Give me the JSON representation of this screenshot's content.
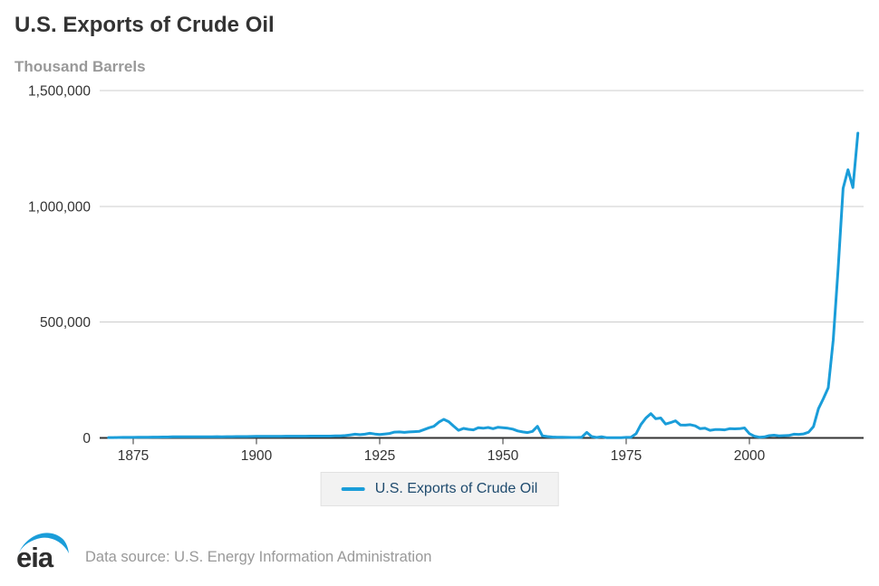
{
  "header": {
    "title": "U.S. Exports of Crude Oil",
    "units_label": "Thousand Barrels"
  },
  "legend": {
    "label": "U.S. Exports of Crude Oil"
  },
  "footer": {
    "logo_text": "eia",
    "source": "Data source: U.S. Energy Information Administration"
  },
  "colors": {
    "line": "#1a9dd9",
    "title_text": "#333333",
    "subtitle_text": "#999999",
    "axis_text": "#333333",
    "gridline": "#cccccc",
    "axis_line": "#333333",
    "legend_bg": "#f2f2f2",
    "legend_text": "#1f4b6e",
    "logo_swoosh": "#1a9dd9",
    "logo_text": "#2e2e2e",
    "source_text": "#999999"
  },
  "chart_data": {
    "type": "line",
    "title": "U.S. Exports of Crude Oil",
    "ylabel": "Thousand Barrels",
    "xlabel": "",
    "series_name": "U.S. Exports of Crude Oil",
    "grid": "horizontal",
    "legend_position": "bottom-center",
    "ylim": [
      0,
      1500000
    ],
    "y_ticks": [
      0,
      500000,
      1000000,
      1500000
    ],
    "y_tick_labels": [
      "0",
      "500,000",
      "1,000,000",
      "1,500,000"
    ],
    "x_ticks": [
      1875,
      1900,
      1925,
      1950,
      1975,
      2000
    ],
    "x_tick_labels": [
      "1875",
      "1900",
      "1925",
      "1950",
      "1975",
      "2000"
    ],
    "x_start_year": 1870,
    "x_end_year": 2022,
    "values": [
      1500,
      1700,
      2000,
      2200,
      2400,
      2500,
      2700,
      3000,
      3200,
      3400,
      3500,
      3800,
      4000,
      4500,
      4600,
      4700,
      4800,
      4900,
      5000,
      5000,
      5100,
      5200,
      5300,
      5200,
      5400,
      5500,
      5700,
      5900,
      6000,
      6200,
      6500,
      6700,
      6800,
      7000,
      7100,
      7200,
      7300,
      7400,
      7400,
      7500,
      7600,
      7700,
      7800,
      7900,
      8000,
      8000,
      8500,
      9000,
      10000,
      13000,
      16000,
      14000,
      16000,
      20000,
      17000,
      15000,
      17000,
      19000,
      25000,
      26000,
      24000,
      26000,
      27000,
      28000,
      36000,
      44000,
      50000,
      68000,
      80000,
      70000,
      51000,
      33000,
      41000,
      37000,
      35000,
      44000,
      42000,
      45000,
      40000,
      46000,
      44000,
      42000,
      38000,
      30000,
      26000,
      23000,
      28000,
      50000,
      9000,
      6000,
      4000,
      3000,
      3000,
      2500,
      2000,
      2000,
      3000,
      24000,
      6000,
      2000,
      5000,
      1000,
      1000,
      1200,
      1100,
      2200,
      3000,
      18000,
      58000,
      86000,
      105000,
      83000,
      86000,
      60000,
      66000,
      74000,
      56000,
      55000,
      57000,
      52000,
      40000,
      42000,
      33000,
      36000,
      36000,
      35000,
      40000,
      39000,
      40000,
      43000,
      18300,
      7300,
      3300,
      4400,
      9900,
      11700,
      9100,
      9900,
      10600,
      16100,
      15300,
      17200,
      24500,
      48900,
      126300,
      169800,
      216700,
      423000,
      730500,
      1078000,
      1158000,
      1081000,
      1316000
    ]
  }
}
